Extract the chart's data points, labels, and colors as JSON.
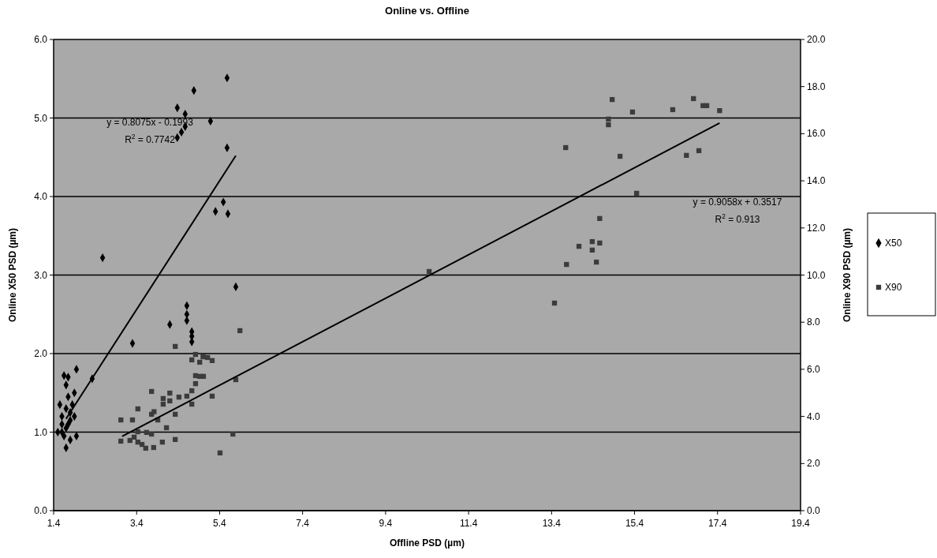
{
  "chart_data": {
    "type": "scatter",
    "title": "Online vs. Offline",
    "xlabel": "Offline PSD (µm)",
    "ylabel": "Online X50 PSD (µm)",
    "y2label": "Online X90 PSD (µm)",
    "xlim": [
      1.4,
      19.4
    ],
    "xticks": [
      1.4,
      3.4,
      5.4,
      7.4,
      9.4,
      11.4,
      13.4,
      15.4,
      17.4,
      19.4
    ],
    "ylim": [
      0,
      6
    ],
    "yticks": [
      {
        "value": 0,
        "label": "0.0"
      },
      {
        "value": 1,
        "label": "1.0"
      },
      {
        "value": 2,
        "label": "2.0"
      },
      {
        "value": 3,
        "label": "3.0"
      },
      {
        "value": 4,
        "label": "4.0"
      },
      {
        "value": 5,
        "label": "5.0"
      },
      {
        "value": 6,
        "label": "6.0"
      }
    ],
    "y2lim": [
      0,
      20
    ],
    "y2ticks": [
      {
        "value": 0,
        "label": "0.0"
      },
      {
        "value": 2,
        "label": "2.0"
      },
      {
        "value": 4,
        "label": "4.0"
      },
      {
        "value": 6,
        "label": "6.0"
      },
      {
        "value": 8,
        "label": "8.0"
      },
      {
        "value": 10,
        "label": "10.0"
      },
      {
        "value": 12,
        "label": "12.0"
      },
      {
        "value": 14,
        "label": "14.0"
      },
      {
        "value": 16,
        "label": "16.0"
      },
      {
        "value": 18,
        "label": "18.0"
      },
      {
        "value": 20,
        "label": "20.0"
      }
    ],
    "grid": "y",
    "legend": "right",
    "series": [
      {
        "name": "X50",
        "marker": "diamond",
        "color": "#000000",
        "x": [
          1.5,
          1.55,
          1.6,
          1.6,
          1.6,
          1.65,
          1.65,
          1.7,
          1.7,
          1.7,
          1.7,
          1.75,
          1.75,
          1.75,
          1.8,
          1.8,
          1.8,
          1.85,
          1.9,
          1.9,
          1.95,
          1.95,
          2.33,
          2.58,
          3.3,
          4.2,
          4.61,
          4.61,
          4.61,
          4.73,
          4.73,
          4.73,
          5.79,
          4.78,
          4.38,
          4.57,
          5.18,
          4.57,
          4.48,
          4.38,
          5.58,
          5.58,
          5.49,
          5.3,
          5.6
        ],
        "values": [
          1.0,
          1.35,
          1.0,
          1.2,
          1.1,
          0.95,
          1.72,
          1.05,
          0.8,
          1.3,
          1.6,
          1.1,
          1.45,
          1.7,
          0.9,
          1.25,
          1.15,
          1.35,
          1.2,
          1.5,
          1.8,
          0.95,
          1.68,
          3.22,
          2.13,
          2.37,
          2.61,
          2.5,
          2.42,
          2.28,
          2.22,
          2.15,
          2.85,
          5.35,
          5.13,
          5.05,
          4.96,
          4.89,
          4.82,
          4.75,
          5.51,
          4.62,
          3.93,
          3.81,
          3.78
        ]
      },
      {
        "name": "X90",
        "marker": "square",
        "axis": "y2",
        "color": "#3c3c3c",
        "x": [
          4.33,
          4.73,
          4.82,
          4.92,
          5.0,
          5.11,
          5.22,
          4.82,
          4.92,
          5.01,
          4.82,
          4.73,
          4.73,
          5.22,
          5.79,
          5.89,
          3.76,
          4.2,
          4.04,
          4.42,
          4.61,
          4.04,
          4.2,
          3.43,
          3.76,
          3.82,
          4.33,
          3.3,
          3.02,
          3.91,
          4.12,
          3.43,
          3.02,
          3.24,
          3.43,
          3.53,
          3.62,
          3.81,
          3.76,
          4.02,
          4.33,
          5.72,
          5.41,
          3.64,
          3.34,
          10.45,
          14.86,
          14.77,
          14.77,
          15.35,
          16.32,
          16.82,
          17.05,
          17.14,
          17.45,
          13.74,
          15.05,
          16.65,
          16.95,
          15.45,
          14.56,
          14.06,
          14.38,
          14.38,
          14.56,
          14.48,
          13.76,
          13.47
        ],
        "values": [
          6.97,
          6.4,
          6.63,
          6.3,
          6.53,
          6.5,
          6.37,
          5.73,
          5.7,
          5.7,
          5.39,
          5.09,
          4.52,
          4.86,
          5.56,
          7.64,
          5.06,
          4.99,
          4.76,
          4.82,
          4.86,
          4.52,
          4.66,
          4.32,
          4.09,
          4.2,
          4.09,
          3.85,
          3.85,
          3.85,
          3.52,
          3.35,
          2.95,
          2.98,
          2.91,
          2.81,
          2.65,
          2.68,
          3.25,
          2.91,
          3.02,
          3.25,
          2.45,
          3.32,
          3.12,
          10.15,
          17.45,
          16.62,
          16.38,
          16.92,
          17.02,
          17.49,
          17.19,
          17.19,
          16.98,
          15.41,
          15.04,
          15.08,
          15.28,
          13.47,
          12.4,
          11.22,
          11.42,
          11.06,
          11.36,
          10.55,
          10.45,
          8.81
        ]
      },
      {
        "type": "line",
        "marker": "none",
        "color": "#000000",
        "x": [
          1.7,
          5.79
        ],
        "values": [
          1.17,
          4.52
        ]
      },
      {
        "type": "line",
        "marker": "none",
        "axis": "y2",
        "color": "#000000",
        "x": [
          3.05,
          17.45
        ],
        "values": [
          3.15,
          16.45
        ]
      }
    ],
    "annotations": [
      "y = 0.8075x - 0.1993",
      "R$^{2}$ = 0.7742",
      "y = 0.9058x + 0.3517",
      "R$^{2}$ = 0.913"
    ]
  }
}
